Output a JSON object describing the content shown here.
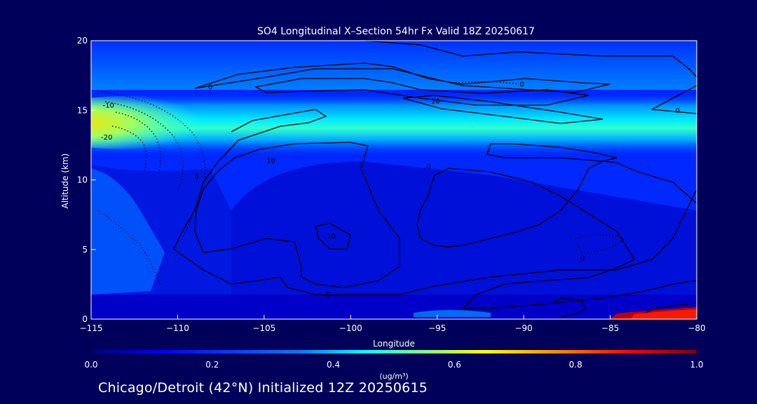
{
  "chart_data": {
    "type": "heatmap",
    "title": "SO4 Longitudinal X–Section 54hr  Fx Valid 18Z 20250617",
    "xlabel": "Longitude",
    "ylabel": "Altitude (km)",
    "xlim": [
      -115,
      -80
    ],
    "ylim": [
      0,
      20
    ],
    "x_ticks": [
      -115,
      -110,
      -105,
      -100,
      -95,
      -90,
      -85,
      -80
    ],
    "x_tick_labels": [
      "−115",
      "−110",
      "−105",
      "−100",
      "−95",
      "−90",
      "−85",
      "−80"
    ],
    "y_ticks": [
      0,
      5,
      10,
      15,
      20
    ],
    "y_tick_labels": [
      "0",
      "5",
      "10",
      "15",
      "20"
    ],
    "colorbar": {
      "label": "(ug/m³)",
      "min": 0.0,
      "max": 1.0,
      "ticks": [
        0.0,
        0.2,
        0.4,
        0.6,
        0.8,
        1.0
      ],
      "tick_labels": [
        "0.0",
        "0.2",
        "0.4",
        "0.6",
        "0.8",
        "1.0"
      ],
      "colors": [
        "#00007f",
        "#0000ff",
        "#0080ff",
        "#00ffff",
        "#80ff80",
        "#ffff00",
        "#ff8000",
        "#ff0000",
        "#7f0000"
      ]
    },
    "contour_labels": [
      {
        "text": "-10",
        "lon": -114.0,
        "alt": 15.2
      },
      {
        "text": "-20",
        "lon": -114.1,
        "alt": 12.9
      },
      {
        "text": "0",
        "lon": -108.1,
        "alt": 16.5
      },
      {
        "text": "0",
        "lon": -108.9,
        "alt": 10.1
      },
      {
        "text": "10",
        "lon": -104.6,
        "alt": 11.2
      },
      {
        "text": "0",
        "lon": -95.5,
        "alt": 10.8
      },
      {
        "text": "10",
        "lon": -95.1,
        "alt": 15.5
      },
      {
        "text": "0",
        "lon": -90.1,
        "alt": 16.7
      },
      {
        "text": "0",
        "lon": -81.1,
        "alt": 14.8
      },
      {
        "text": "10",
        "lon": -101.1,
        "alt": 5.8
      },
      {
        "text": "0",
        "lon": -101.3,
        "alt": 1.6
      },
      {
        "text": "0",
        "lon": -86.6,
        "alt": 4.2
      }
    ]
  },
  "footer": "Chicago/Detroit (42°N) Initialized 12Z 20250615"
}
